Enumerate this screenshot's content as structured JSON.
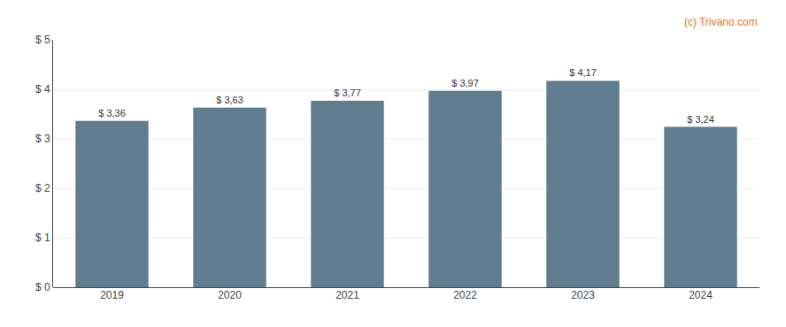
{
  "chart_data": {
    "type": "bar",
    "categories": [
      "2019",
      "2020",
      "2021",
      "2022",
      "2023",
      "2024"
    ],
    "values": [
      3.36,
      3.63,
      3.77,
      3.97,
      4.17,
      3.24
    ],
    "value_labels": [
      "$ 3,36",
      "$ 3,63",
      "$ 3,77",
      "$ 3,97",
      "$ 4,17",
      "$ 3,24"
    ],
    "data_labels": true,
    "color": "#607d8f",
    "ylim": [
      0,
      5
    ],
    "yticks": [
      {
        "value": 0,
        "label": "$ 0"
      },
      {
        "value": 1,
        "label": "$ 1"
      },
      {
        "value": 2,
        "label": "$ 2"
      },
      {
        "value": 3,
        "label": "$ 3"
      },
      {
        "value": 4,
        "label": "$ 4"
      },
      {
        "value": 5,
        "label": "$ 5"
      }
    ],
    "grid": true,
    "annotations": [
      {
        "text": "(c) Trivano.com",
        "color": "#e87722"
      }
    ]
  }
}
